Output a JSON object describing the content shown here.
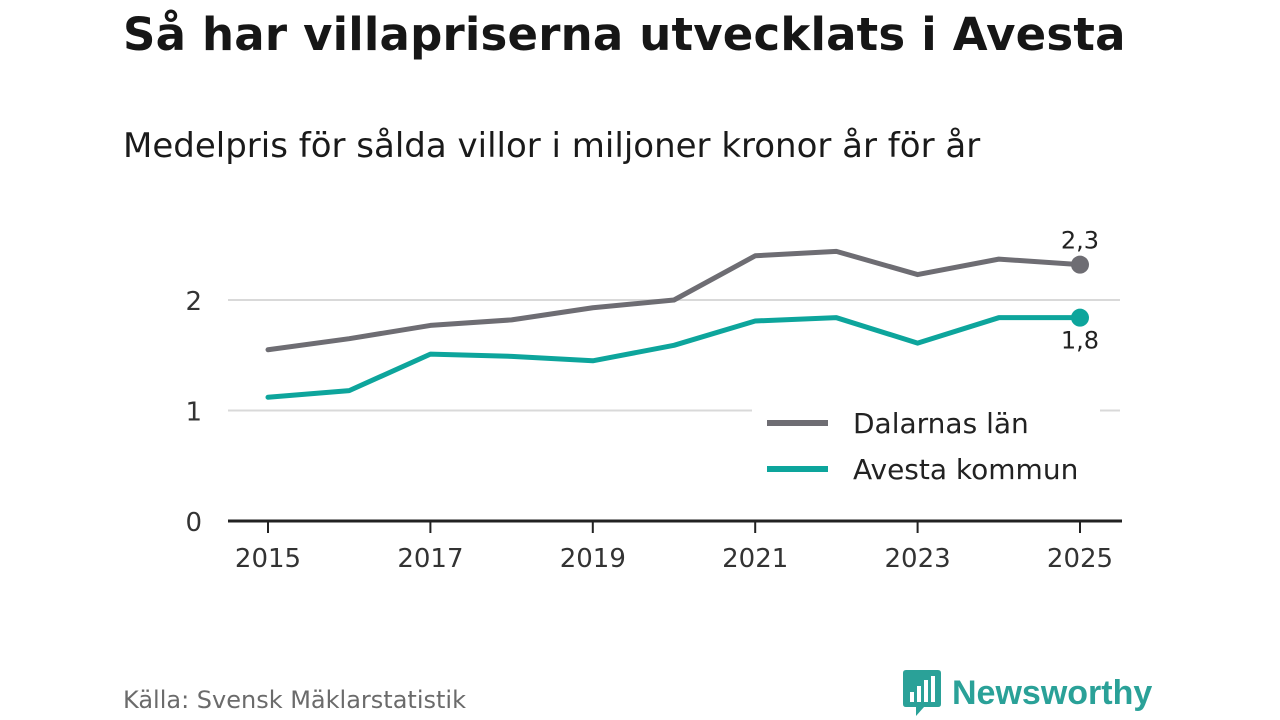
{
  "title": "Så har villapriserna utvecklats i Avesta",
  "subtitle": "Medelpris för sålda villor i miljoner kronor år för år",
  "source": "Källa: Svensk Mäklarstatistik",
  "brand": {
    "name": "Newsworthy",
    "icon": "newsworthy-logo-icon",
    "color": "#2aa198"
  },
  "chart_data": {
    "type": "line",
    "x": [
      2015,
      2016,
      2017,
      2018,
      2019,
      2020,
      2021,
      2022,
      2023,
      2024,
      2025
    ],
    "x_tick_labels": [
      "2015",
      "2017",
      "2019",
      "2021",
      "2023",
      "2025"
    ],
    "x_tick_values": [
      2015,
      2017,
      2019,
      2021,
      2023,
      2025
    ],
    "y_tick_labels": [
      "0",
      "1",
      "2"
    ],
    "y_tick_values": [
      0,
      1,
      2
    ],
    "ylim": [
      0,
      2.5
    ],
    "grid": true,
    "legend_position": "bottom-right",
    "series": [
      {
        "name": "Dalarnas län",
        "color": "#6e6d73",
        "values": [
          1.55,
          1.65,
          1.77,
          1.82,
          1.93,
          2.0,
          2.4,
          2.44,
          2.23,
          2.37,
          2.32
        ],
        "end_label": "2,3"
      },
      {
        "name": "Avesta kommun",
        "color": "#0da59c",
        "values": [
          1.12,
          1.18,
          1.51,
          1.49,
          1.45,
          1.59,
          1.81,
          1.84,
          1.61,
          1.84,
          1.84
        ],
        "end_label": "1,8"
      }
    ]
  }
}
